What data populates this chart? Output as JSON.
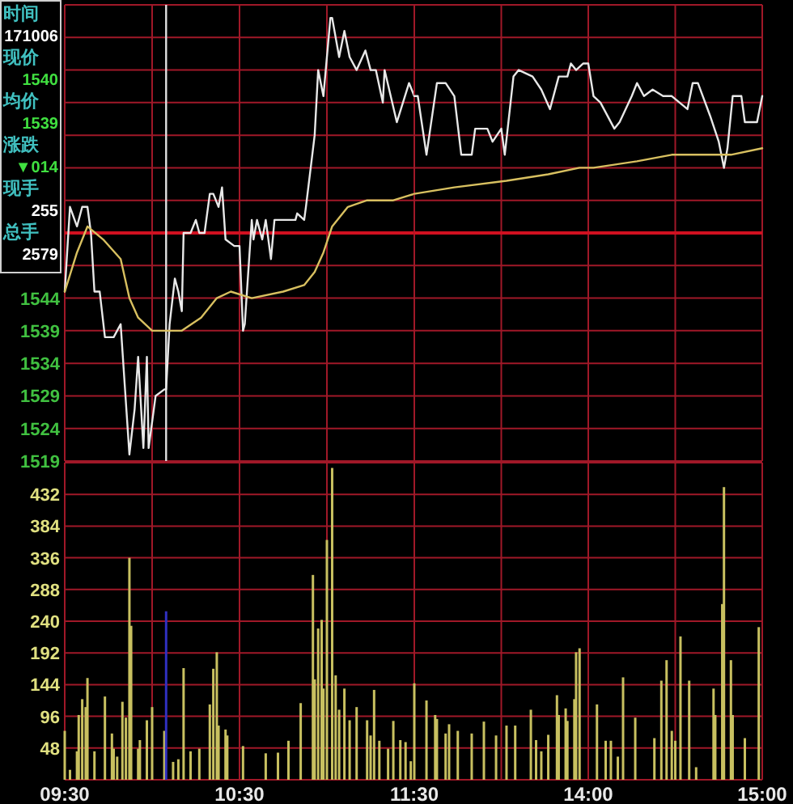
{
  "chart_data": [
    {
      "type": "line",
      "xlim": [
        9.5,
        11.5
      ],
      "ylim": [
        1519,
        1589
      ],
      "tick_labels": "y",
      "grid": true,
      "xticks": [
        {
          "value": 9.5,
          "label": null
        },
        {
          "value": 10,
          "label": null
        },
        {
          "value": 10.5,
          "label": null
        },
        {
          "value": 11,
          "label": null
        },
        {
          "value": 11.5,
          "label": null
        }
      ],
      "yticks": [
        1519,
        1524,
        1529,
        1534,
        1539,
        1544,
        {
          "value": 1549,
          "label": null
        },
        {
          "value": 1554,
          "label": null
        },
        {
          "value": 1559,
          "label": null
        },
        {
          "value": 1564,
          "label": null
        },
        {
          "value": 1569,
          "label": null
        },
        {
          "value": 1574,
          "label": null
        },
        {
          "value": 1579,
          "label": null
        },
        {
          "value": 1584,
          "label": null
        },
        {
          "value": 1589,
          "label": null
        }
      ],
      "ref_lines": [
        {
          "axis": "y",
          "value": 1554,
          "color": "#d01020"
        },
        {
          "axis": "x",
          "value": 10.08,
          "color": "#e0e0e0"
        }
      ],
      "annotations": [
        "时间",
        "171006",
        "现价",
        "1540",
        "均价",
        "1539",
        "涨跌",
        "▼014",
        "现手",
        "255",
        "总手",
        "2579"
      ],
      "series": [
        {
          "color": "#e8e8e8",
          "x": [
            9.5,
            9.53,
            9.57,
            9.6,
            9.63,
            9.65,
            9.67,
            9.7,
            9.73,
            9.78,
            9.82,
            9.87,
            9.9,
            9.92,
            9.95,
            9.97,
            9.98,
            10.02,
            10.07,
            10.08,
            10.1,
            10.13,
            10.15,
            10.17,
            10.18,
            10.22,
            10.25,
            10.27,
            10.3,
            10.33,
            10.35,
            10.38,
            10.4,
            10.42,
            10.47,
            10.5,
            10.52,
            10.53,
            10.57,
            10.58,
            10.6,
            10.63,
            10.65,
            10.68,
            10.7,
            10.73,
            10.82,
            10.83,
            10.87,
            10.88,
            10.93,
            10.95,
            10.98,
            11.02,
            11.03,
            11.07,
            11.1,
            11.13,
            11.17,
            11.22,
            11.25,
            11.28,
            11.32,
            11.33,
            11.4,
            11.47,
            11.5
          ],
          "values": [
            1545,
            1558,
            1555,
            1558,
            1558,
            1554,
            1545,
            1545,
            1538,
            1538,
            1540,
            1520,
            1527,
            1535,
            1521,
            1535,
            1521,
            1529,
            1530,
            1530,
            1540,
            1547,
            1545,
            1542,
            1554,
            1554,
            1556,
            1554,
            1554,
            1560,
            1560,
            1558,
            1561,
            1553,
            1552,
            1552,
            1539,
            1540,
            1556,
            1553,
            1556,
            1553,
            1556,
            1550,
            1556,
            1556,
            1556,
            1557,
            1556,
            1558,
            1569,
            1579,
            1575,
            1587,
            1587,
            1581,
            1585,
            1581,
            1579,
            1582,
            1579,
            1579,
            1574,
            1579,
            1571,
            1577,
            1575
          ]
        },
        {
          "color": "#d8c060",
          "x": [
            9.5,
            9.57,
            9.63,
            9.72,
            9.82,
            9.87,
            9.92,
            10.0,
            10.1,
            10.17,
            10.28,
            10.37,
            10.45,
            10.57,
            10.75,
            10.87,
            10.93,
            10.98,
            11.03,
            11.12,
            11.23,
            11.38,
            11.5
          ],
          "values": [
            1545,
            1551,
            1555,
            1553,
            1550,
            1544,
            1541,
            1539,
            1539,
            1539,
            1541,
            1544,
            1545,
            1544,
            1545,
            1546,
            1548,
            1551,
            1555,
            1558,
            1559,
            1559,
            1560
          ]
        }
      ]
    },
    {
      "type": "line",
      "xlim": [
        13,
        15
      ],
      "ylim": [
        1519,
        1589
      ],
      "tick_labels": false,
      "grid": true,
      "xticks": [
        {
          "value": 13,
          "label": null
        },
        {
          "value": 13.5,
          "label": null
        },
        {
          "value": 14,
          "label": null
        },
        {
          "value": 14.5,
          "label": null
        },
        {
          "value": 15,
          "label": null
        }
      ],
      "yticks": [
        {
          "value": 1519,
          "label": null
        },
        {
          "value": 1524,
          "label": null
        },
        {
          "value": 1529,
          "label": null
        },
        {
          "value": 1534,
          "label": null
        },
        {
          "value": 1539,
          "label": null
        },
        {
          "value": 1544,
          "label": null
        },
        {
          "value": 1549,
          "label": null
        },
        {
          "value": 1554,
          "label": null
        },
        {
          "value": 1559,
          "label": null
        },
        {
          "value": 1564,
          "label": null
        },
        {
          "value": 1569,
          "label": null
        },
        {
          "value": 1574,
          "label": null
        },
        {
          "value": 1579,
          "label": null
        },
        {
          "value": 1584,
          "label": null
        },
        {
          "value": 1589,
          "label": null
        }
      ],
      "ref_lines": [
        {
          "axis": "y",
          "value": 1554,
          "color": "#d01020"
        }
      ],
      "series": [
        {
          "color": "#e8e8e8",
          "x": [
            13.0,
            13.02,
            13.07,
            13.13,
            13.18,
            13.23,
            13.27,
            13.33,
            13.35,
            13.42,
            13.45,
            13.5,
            13.52,
            13.57,
            13.6,
            13.68,
            13.73,
            13.78,
            13.83,
            13.88,
            13.9,
            13.93,
            13.97,
            14.0,
            14.03,
            14.07,
            14.15,
            14.18,
            14.25,
            14.28,
            14.32,
            14.37,
            14.43,
            14.48,
            14.57,
            14.6,
            14.63,
            14.7,
            14.75,
            14.78,
            14.8,
            14.83,
            14.88,
            14.9,
            14.97,
            15.0
          ],
          "values": [
            1575,
            1575,
            1566,
            1577,
            1577,
            1575,
            1566,
            1566,
            1570,
            1570,
            1568,
            1570,
            1566,
            1578,
            1579,
            1578,
            1576,
            1573,
            1578,
            1578,
            1580,
            1579,
            1580,
            1580,
            1575,
            1574,
            1570,
            1571,
            1575,
            1577,
            1575,
            1576,
            1575,
            1575,
            1573,
            1577,
            1577,
            1572,
            1568,
            1564,
            1567,
            1575,
            1575,
            1571,
            1571,
            1575
          ]
        },
        {
          "color": "#d8c060",
          "x": [
            13.0,
            13.23,
            13.53,
            13.77,
            13.95,
            14.03,
            14.28,
            14.48,
            14.58,
            14.82,
            15.0
          ],
          "values": [
            1560,
            1561,
            1562,
            1563,
            1564,
            1564,
            1565,
            1566,
            1566,
            1566,
            1567
          ]
        }
      ]
    },
    {
      "type": "bar",
      "xlim": [
        9.5,
        11.5
      ],
      "ylim": [
        0,
        480
      ],
      "tick_labels": true,
      "grid": true,
      "xticks": [
        {
          "value": 9.5,
          "label": "09:30"
        },
        {
          "value": 10,
          "label": null
        },
        {
          "value": 10.5,
          "label": "10:30"
        },
        {
          "value": 11,
          "label": null
        },
        {
          "value": 11.5,
          "label": "11:30"
        }
      ],
      "yticks": [
        48,
        96,
        144,
        192,
        240,
        288,
        336,
        384,
        432
      ],
      "series": [
        {
          "color": "#c8c060",
          "x": [
            9.5,
            9.53,
            9.57,
            9.58,
            9.6,
            9.62,
            9.63,
            9.67,
            9.73,
            9.77,
            9.78,
            9.8,
            9.83,
            9.85,
            9.87,
            9.88,
            9.92,
            9.93,
            9.97,
            10.0,
            10.07,
            10.12,
            10.15,
            10.18,
            10.22,
            10.27,
            10.33,
            10.35,
            10.37,
            10.38,
            10.42,
            10.43,
            10.52,
            10.65,
            10.72,
            10.78,
            10.85,
            10.92,
            10.93,
            10.95,
            10.97,
            10.98,
            11.0,
            11.03,
            11.05,
            11.07,
            11.1,
            11.13,
            11.17,
            11.23,
            11.25,
            11.27,
            11.3,
            11.35,
            11.38,
            11.42,
            11.45,
            11.48
          ],
          "values": [
            74,
            15,
            43,
            98,
            122,
            110,
            154,
            43,
            126,
            70,
            47,
            35,
            118,
            94,
            336,
            233,
            47,
            60,
            90,
            110,
            74,
            27,
            31,
            169,
            43,
            47,
            114,
            168,
            193,
            82,
            76,
            67,
            51,
            40,
            41,
            59,
            116,
            310,
            152,
            229,
            242,
            138,
            363,
            472,
            158,
            106,
            138,
            90,
            110,
            90,
            67,
            136,
            59,
            47,
            89,
            60,
            57,
            28
          ]
        },
        {
          "color": "#3030c0",
          "x": [
            10.08
          ],
          "values": [
            255
          ]
        }
      ]
    },
    {
      "type": "bar",
      "xlim": [
        13,
        15
      ],
      "ylim": [
        0,
        480
      ],
      "tick_labels": "x",
      "grid": true,
      "xticks": [
        {
          "value": 13,
          "label": null
        },
        {
          "value": 13.5,
          "label": null
        },
        {
          "value": 14,
          "label": "14:00"
        },
        {
          "value": 14.5,
          "label": null
        },
        {
          "value": 15,
          "label": "15:00"
        }
      ],
      "yticks": [
        {
          "value": 48,
          "label": null
        },
        {
          "value": 96,
          "label": null
        },
        {
          "value": 144,
          "label": null
        },
        {
          "value": 192,
          "label": null
        },
        {
          "value": 240,
          "label": null
        },
        {
          "value": 288,
          "label": null
        },
        {
          "value": 336,
          "label": null
        },
        {
          "value": 384,
          "label": null
        },
        {
          "value": 432,
          "label": null
        }
      ],
      "series": [
        {
          "color": "#c8c060",
          "x": [
            13.0,
            13.07,
            13.12,
            13.13,
            13.18,
            13.2,
            13.25,
            13.33,
            13.4,
            13.47,
            13.53,
            13.58,
            13.67,
            13.7,
            13.73,
            13.77,
            13.82,
            13.83,
            13.87,
            13.88,
            13.92,
            13.93,
            13.95,
            14.05,
            14.1,
            14.13,
            14.17,
            14.2,
            14.27,
            14.38,
            14.42,
            14.45,
            14.48,
            14.5,
            14.53,
            14.58,
            14.62,
            14.72,
            14.73,
            14.77,
            14.78,
            14.82,
            14.83,
            14.9,
            14.98
          ],
          "values": [
            146,
            120,
            98,
            92,
            70,
            84,
            74,
            70,
            88,
            67,
            82,
            82,
            106,
            60,
            43,
            68,
            128,
            98,
            108,
            89,
            122,
            193,
            199,
            114,
            59,
            59,
            35,
            155,
            94,
            63,
            150,
            181,
            74,
            59,
            217,
            150,
            19,
            138,
            98,
            266,
            443,
            181,
            98,
            63,
            231
          ]
        }
      ]
    }
  ]
}
